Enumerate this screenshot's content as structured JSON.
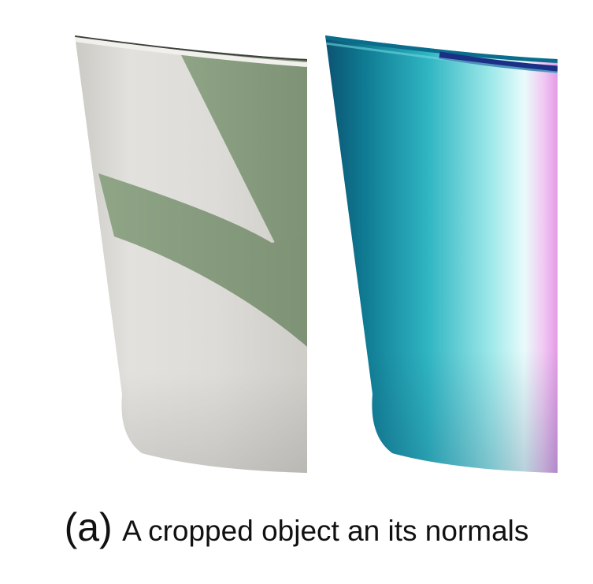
{
  "figure": {
    "caption_label": "(a)",
    "caption_text": "A cropped object an its normals",
    "panels": [
      {
        "id": "rgb",
        "description_name": "cropped-cup-rgb"
      },
      {
        "id": "normals",
        "description_name": "cup-normal-map"
      }
    ]
  },
  "colors": {
    "paper_white": "#e4e3df",
    "cup_stripe_green": "#8da184",
    "normal_dark_teal": "#0d6a86",
    "normal_cyan": "#6fdce0",
    "normal_pink": "#e8a6ea",
    "rim_blue": "#1c2f8a"
  }
}
